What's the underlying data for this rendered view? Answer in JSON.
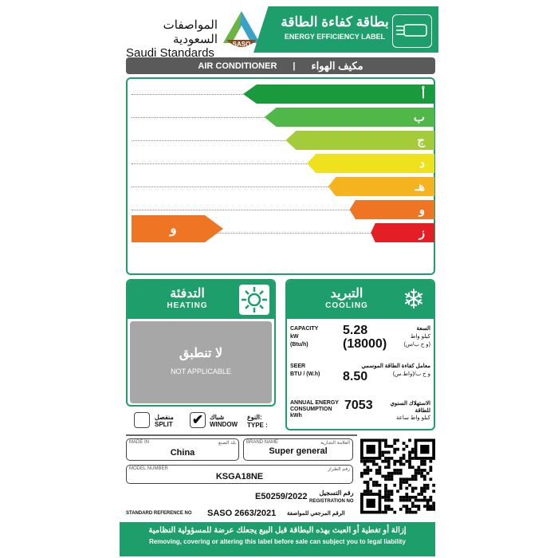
{
  "header": {
    "org_ar": "المواصفات السعودية",
    "org_en": "Saudi Standards",
    "logo": "SASO",
    "title_ar": "بطاقة كفاءة الطاقة",
    "title_en": "ENERGY EFFICIENCY LABEL",
    "icon": "air-conditioner-icon"
  },
  "category": {
    "en": "AIR CONDITIONER",
    "sep": "|",
    "ar": "مكيف الهواء"
  },
  "ratings": {
    "grades": [
      {
        "label": "أ",
        "color": "#1a9a3c"
      },
      {
        "label": "ب",
        "color": "#4fb848"
      },
      {
        "label": "ج",
        "color": "#a4cc3a"
      },
      {
        "label": "د",
        "color": "#eee21e"
      },
      {
        "label": "هـ",
        "color": "#f5b41f"
      },
      {
        "label": "و",
        "color": "#ee7523"
      },
      {
        "label": "ز",
        "color": "#e31e25"
      }
    ],
    "selected": "و",
    "selected_color": "#ee7523"
  },
  "heating": {
    "title_ar": "التدفئة",
    "title_en": "HEATING",
    "icon": "sun-icon",
    "na_ar": "لا تنطبق",
    "na_en": "NOT APPLICABLE"
  },
  "cooling": {
    "title_ar": "التبريد",
    "title_en": "COOLING",
    "icon": "snowflake-icon",
    "capacity": {
      "en": "CAPACITY",
      "u1": "kW",
      "u2": "(Btu/h)",
      "v1": "5.28",
      "v2": "(18000)",
      "ar": "السعة",
      "ar_u1": "كيلو واط",
      "ar_u2": "(و ح ب/س)"
    },
    "seer": {
      "en": "SEER",
      "u": "BTU / (W.h)",
      "v": "8.50",
      "ar": "معامل كفاءة الطاقة الموسمي",
      "ar_u": "و ح ب/(واط.س)"
    },
    "annual": {
      "en1": "ANNUAL ENERGY",
      "en2": "CONSUMPTION",
      "u": "kWh",
      "v": "7053",
      "ar": "الاستهلاك السنوي للطاقة",
      "ar_u": "كيلو واط ساعة"
    }
  },
  "type": {
    "label_ar": "النوع:",
    "label_en": "TYPE :",
    "window_ar": "شباك",
    "window_en": "WINDOW",
    "window_checked": true,
    "split_ar": "منفصل",
    "split_en": "SPLIT",
    "split_checked": false
  },
  "made_in": {
    "en": "MADE IN",
    "ar": "بلد الصنع",
    "value": "China"
  },
  "brand": {
    "en": "BRAND NAME",
    "ar": "العلامة التجارية",
    "value": "Super general"
  },
  "model": {
    "en": "MODEL NUMBER",
    "ar": "رقم الطراز",
    "value": "KSGA18NE"
  },
  "registration": {
    "ar": "رقم التسجيل",
    "en": "REGISTRATION NO",
    "value": "E50259/2022"
  },
  "standard": {
    "en": "STANDARD REFERENCE NO",
    "value": "SASO 2663/2021",
    "ar": "الرقم المرجعي للمواصفة"
  },
  "footer": {
    "ar": "إزالة أو تغطية أو العبث بهذه البطاقة قبل البيع يجعلك عرضة للمسؤولية النظامية",
    "en": "Removing, covering or altering this label before sale can subject you to legal liability"
  }
}
